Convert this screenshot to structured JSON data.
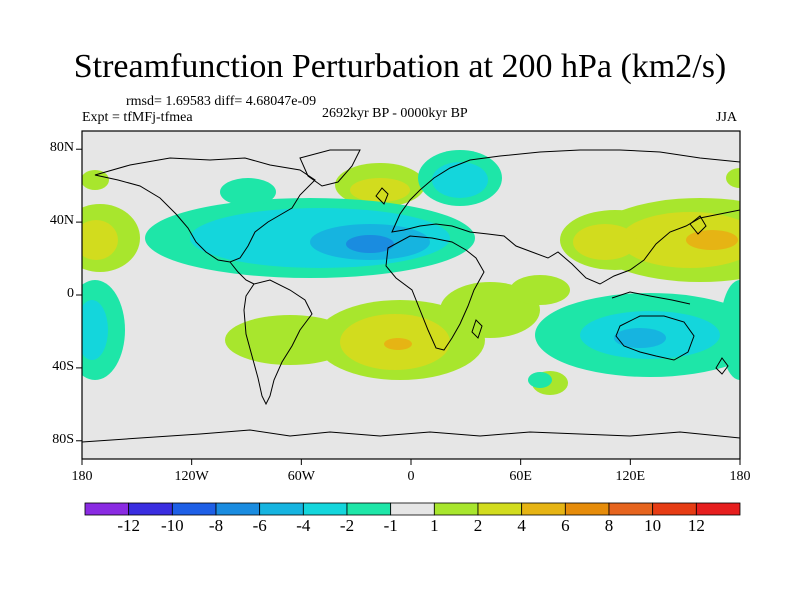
{
  "title": "Streamfunction Perturbation at 200 hPa (km2/s)",
  "rmsd_line": "rmsd= 1.69583 diff= 4.68047e-09",
  "experiment": "Expt = tfMFj-tfmea",
  "period": "2692kyr BP - 0000kyr BP",
  "season": "JJA",
  "lat_ticks": [
    "80N",
    "40N",
    "0",
    "40S",
    "80S"
  ],
  "lon_ticks": [
    "180",
    "120W",
    "60W",
    "0",
    "60E",
    "120E",
    "180"
  ],
  "colorbar": {
    "colors": [
      "#8a2be2",
      "#3a2de0",
      "#1e5fe6",
      "#1a8ce0",
      "#16b4e0",
      "#14d6dc",
      "#1ee6a8",
      "#e6e6e6",
      "#a8e62d",
      "#d2dc1e",
      "#e6b414",
      "#e68c0a",
      "#e6641e",
      "#e63c14",
      "#e61e1e"
    ],
    "labels": [
      "-12",
      "-10",
      "-8",
      "-6",
      "-4",
      "-2",
      "-1",
      "1",
      "2",
      "4",
      "6",
      "8",
      "10",
      "12"
    ]
  },
  "chart_data": {
    "type": "heatmap",
    "title": "Streamfunction Perturbation at 200 hPa (km2/s)",
    "projection": "cylindrical equidistant",
    "lon_range": [
      -180,
      180
    ],
    "lat_range": [
      -90,
      90
    ],
    "contour_levels": [
      -12,
      -10,
      -8,
      -6,
      -4,
      -2,
      -1,
      1,
      2,
      4,
      6,
      8,
      10,
      12
    ],
    "features": [
      {
        "name": "north-atlantic-negative-core",
        "lon": -25,
        "lat": 30,
        "value": -4
      },
      {
        "name": "north-atlantic-negative-band",
        "lon": -70,
        "lat": 35,
        "value": -2
      },
      {
        "name": "west-pacific-positive-core",
        "lon": 162,
        "lat": 30,
        "value": 6
      },
      {
        "name": "asia-positive-band",
        "lon": 100,
        "lat": 30,
        "value": 4
      },
      {
        "name": "east-pacific-positive-core",
        "lon": -175,
        "lat": 32,
        "value": 4
      },
      {
        "name": "south-atlantic-positive-core",
        "lon": 5,
        "lat": -25,
        "value": 4
      },
      {
        "name": "south-atlantic-positive-band",
        "lon": -40,
        "lat": -22,
        "value": 2
      },
      {
        "name": "australia-negative-core",
        "lon": 125,
        "lat": -25,
        "value": -2
      },
      {
        "name": "south-pacific-negative-core",
        "lon": -178,
        "lat": -25,
        "value": -2
      },
      {
        "name": "europe-positive-core",
        "lon": -7,
        "lat": 58,
        "value": 2
      },
      {
        "name": "scandinavia-negative-core",
        "lon": 30,
        "lat": 65,
        "value": -2
      },
      {
        "name": "indian-ocean-positive-band",
        "lon": 60,
        "lat": -5,
        "value": 2
      },
      {
        "name": "southern-ocean-positive-blob",
        "lon": 30,
        "lat": -50,
        "value": 2
      }
    ]
  }
}
